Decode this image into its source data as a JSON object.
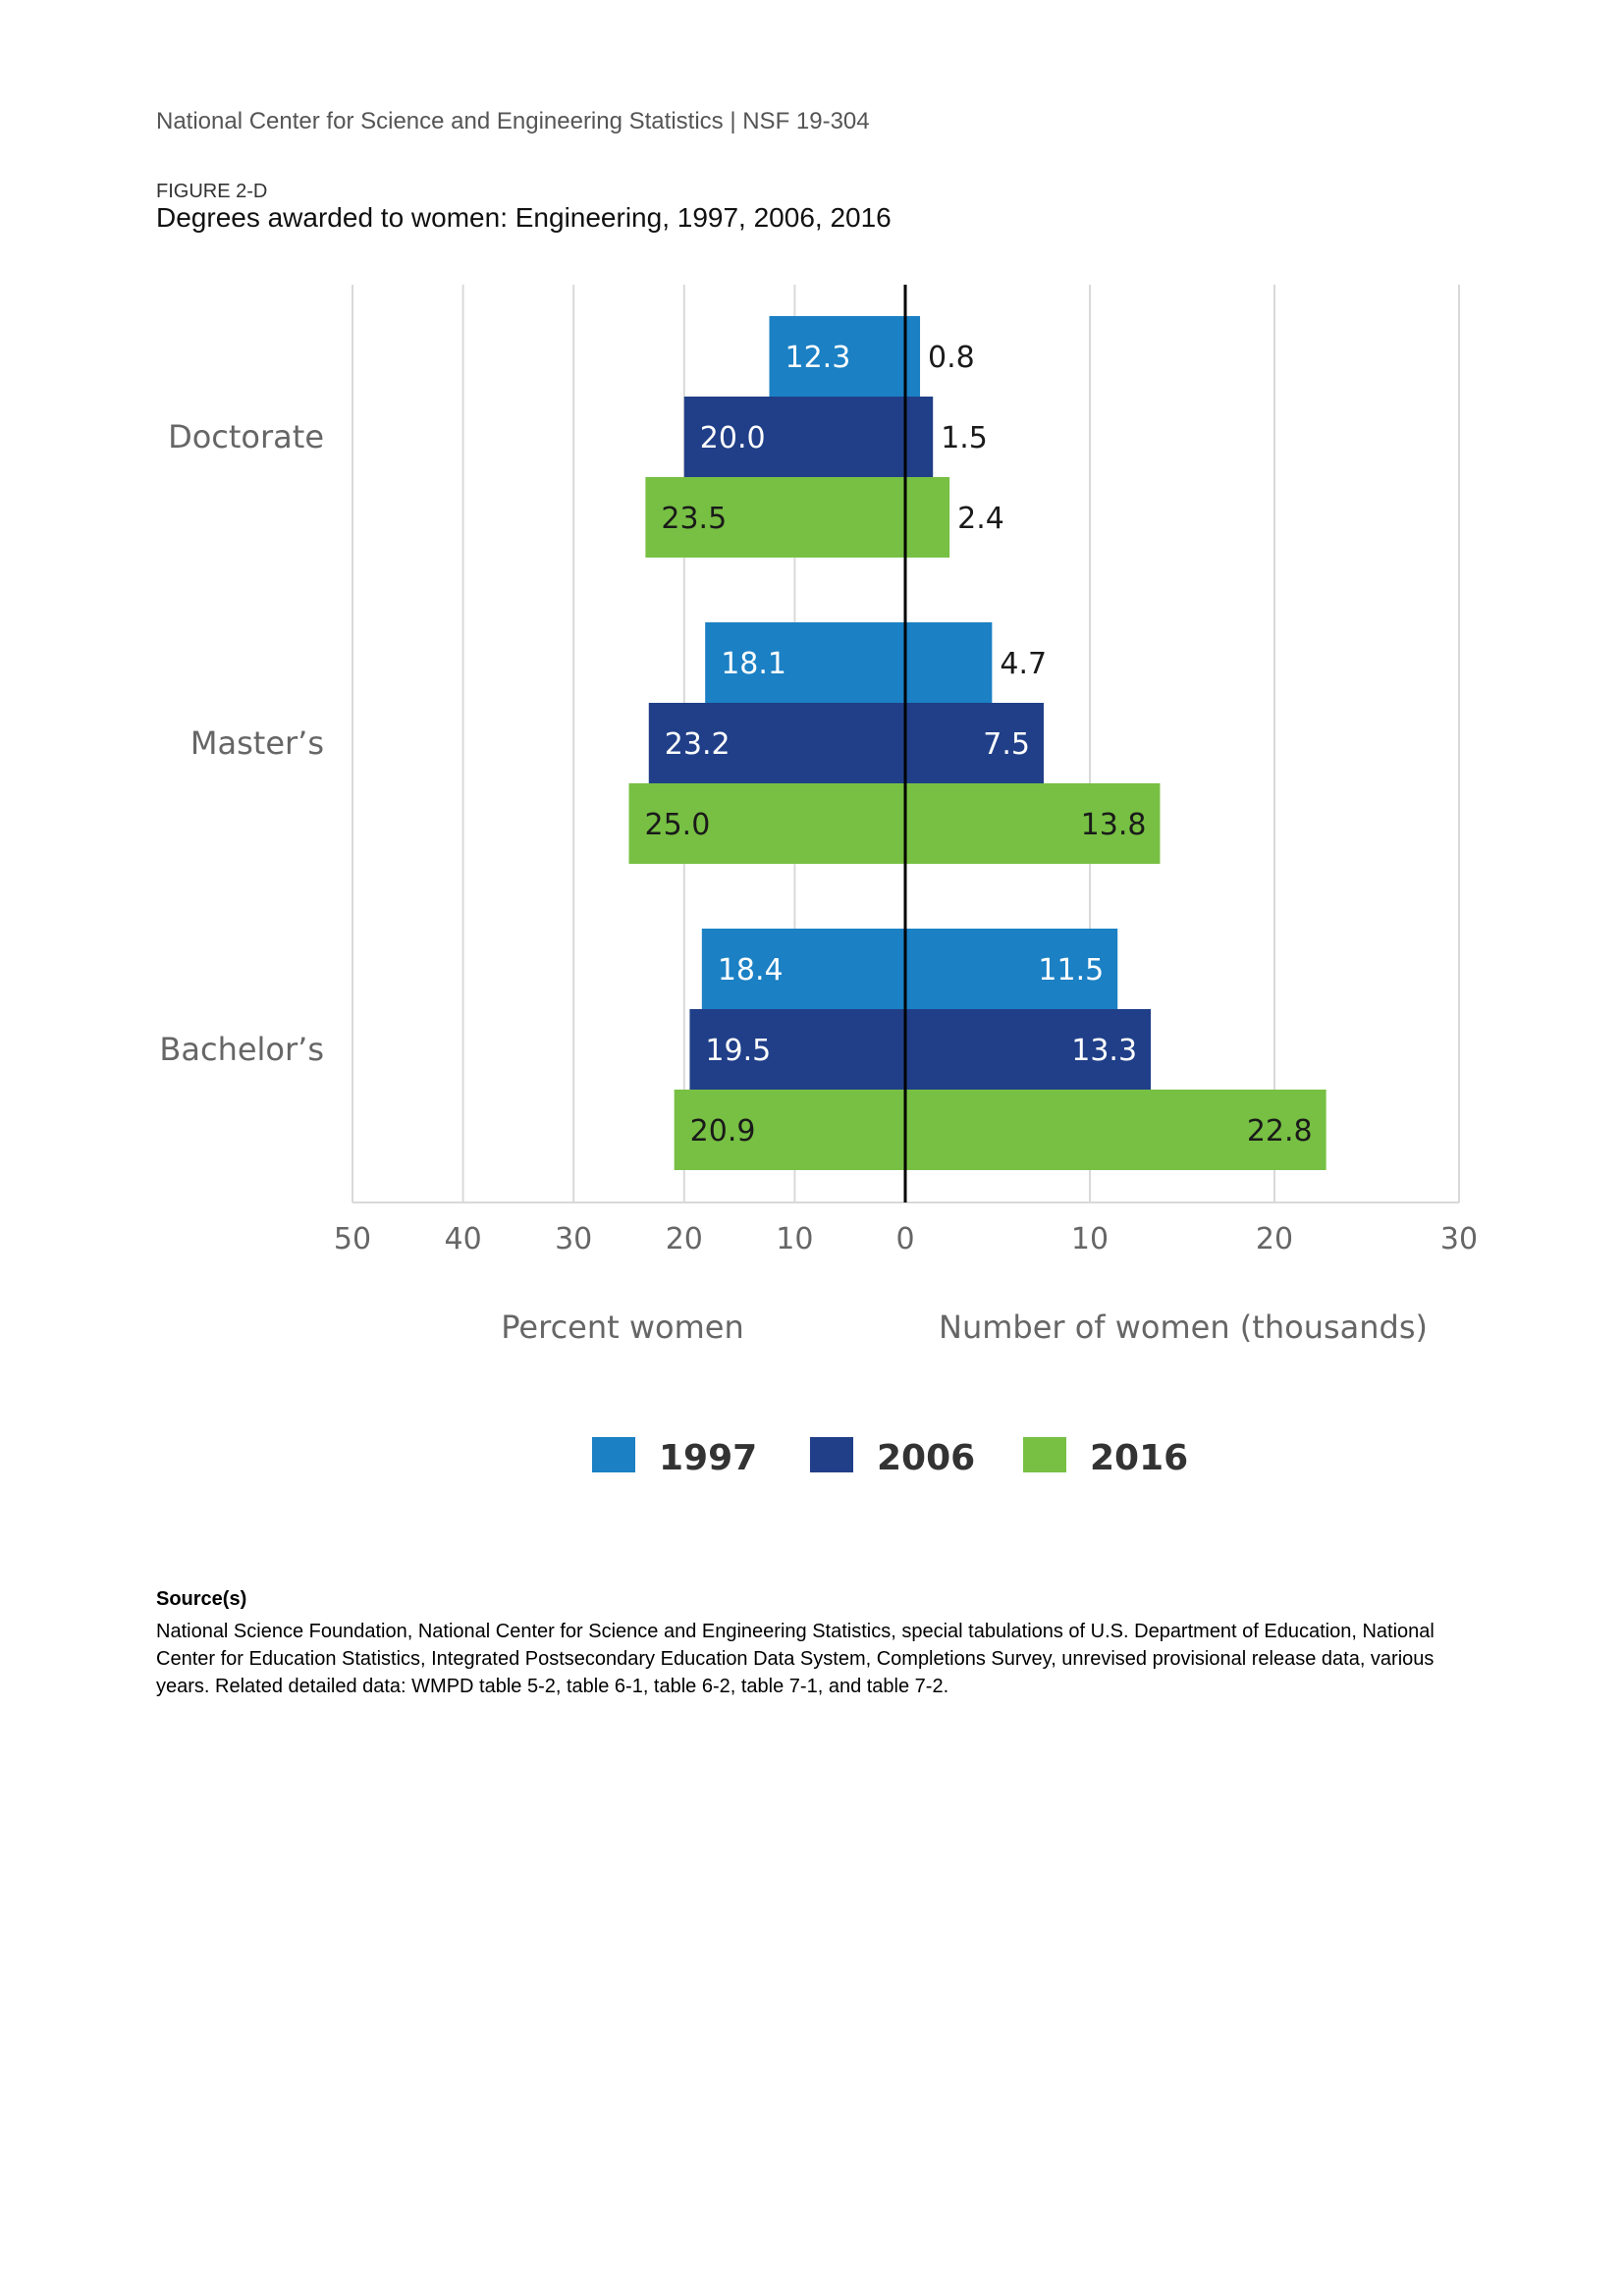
{
  "header": {
    "publisher_line": "National Center for Science and Engineering Statistics  |  NSF 19-304",
    "figure_number": "FIGURE 2-D",
    "figure_title": "Degrees awarded to women: Engineering, 1997, 2006, 2016"
  },
  "colors": {
    "y1997": "#1b80c4",
    "y2006": "#203f88",
    "y2016": "#77c043",
    "grid": "#d9d9d9",
    "zero_axis": "#000000"
  },
  "chart_data": {
    "type": "bar",
    "orientation": "horizontal",
    "layout": "diverging",
    "categories": [
      "Doctorate",
      "Master’s",
      "Bachelor’s"
    ],
    "series": [
      {
        "name": "1997",
        "percent_women": [
          12.3,
          18.1,
          18.4
        ],
        "number_women_thousands": [
          0.8,
          4.7,
          11.5
        ],
        "percent_labels": [
          "12.3",
          "18.1",
          "18.4"
        ],
        "number_labels": [
          "0.8",
          "4.7",
          "11.5"
        ]
      },
      {
        "name": "2006",
        "percent_women": [
          20.0,
          23.2,
          19.5
        ],
        "number_women_thousands": [
          1.5,
          7.5,
          13.3
        ],
        "percent_labels": [
          "20.0",
          "23.2",
          "19.5"
        ],
        "number_labels": [
          "1.5",
          "7.5",
          "13.3"
        ]
      },
      {
        "name": "2016",
        "percent_women": [
          23.5,
          25.0,
          20.9
        ],
        "number_women_thousands": [
          2.4,
          13.8,
          22.8
        ],
        "percent_labels": [
          "23.5",
          "25.0",
          "20.9"
        ],
        "number_labels": [
          "2.4",
          "13.8",
          "22.8"
        ]
      }
    ],
    "left_axis": {
      "title": "Percent women",
      "range": [
        0,
        50
      ],
      "ticks": [
        50,
        40,
        30,
        20,
        10,
        0
      ],
      "tick_labels": [
        "50",
        "40",
        "30",
        "20",
        "10",
        "0"
      ]
    },
    "right_axis": {
      "title": "Number of women (thousands)",
      "range": [
        0,
        30
      ],
      "ticks": [
        10,
        20,
        30
      ],
      "tick_labels": [
        "10",
        "20",
        "30"
      ]
    },
    "grid": true,
    "legend_position": "bottom"
  },
  "source": {
    "heading": "Source(s)",
    "text": "National Science Foundation, National Center for Science and Engineering Statistics, special tabulations of U.S. Department of Education, National Center for Education Statistics, Integrated Postsecondary Education Data System, Completions Survey, unrevised provisional release data, various years. Related detailed data: WMPD table 5-2, table 6-1, table 6-2, table 7-1, and table 7-2."
  }
}
